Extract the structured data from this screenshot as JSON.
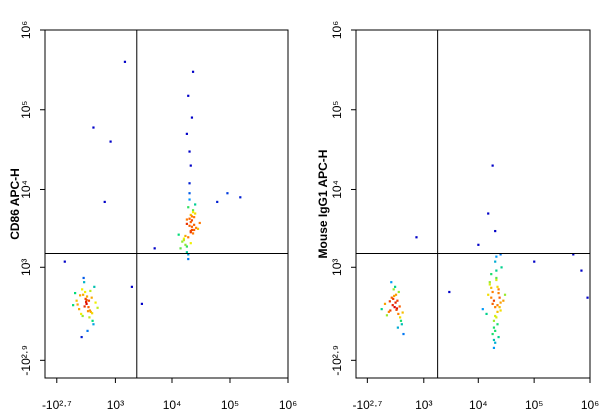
{
  "chart_data": [
    {
      "type": "scatter",
      "scale": "biexponential",
      "y_label": "CD86 APC-H",
      "xlim": [
        -900,
        1000000
      ],
      "ylim": [
        -1400,
        1000000
      ],
      "xticks": [
        {
          "value": -501,
          "label": "-10²·⁷"
        },
        {
          "value": 1000,
          "label": "10³"
        },
        {
          "value": 10000,
          "label": "10⁴"
        },
        {
          "value": 100000,
          "label": "10⁵"
        },
        {
          "value": 1000000,
          "label": "10⁶"
        }
      ],
      "yticks": [
        {
          "value": -794,
          "label": "-10²·⁹"
        },
        {
          "value": 1000,
          "label": "10³"
        },
        {
          "value": 10000,
          "label": "10⁴"
        },
        {
          "value": 100000,
          "label": "10⁵"
        },
        {
          "value": 1000000,
          "label": "10⁶"
        }
      ],
      "gates": {
        "x": 2450,
        "y": 1535
      },
      "x": [
        150,
        80,
        220,
        -50,
        300,
        120,
        190,
        40,
        260,
        100,
        170,
        -120,
        350,
        60,
        210,
        130,
        0,
        280,
        90,
        160,
        240,
        -80,
        200,
        110,
        320,
        50,
        180,
        140,
        20,
        400,
        70,
        230,
        150,
        -30,
        270,
        20000,
        18000,
        23000,
        25000,
        15000,
        21000,
        19000,
        22000,
        17000,
        24000,
        26000,
        14000,
        20000,
        21000,
        18000,
        23000,
        19000,
        16000,
        22000,
        28000,
        20000,
        17000,
        24000,
        21000,
        19000,
        13000,
        22000,
        25000,
        18000,
        20000,
        21000,
        23000,
        19000,
        30000,
        16000,
        22000,
        20000,
        18000,
        24000,
        21000,
        20000,
        22000,
        19000,
        21000,
        18000,
        23000,
        2000,
        5000,
        600,
        800,
        60000,
        90000,
        150000,
        1500,
        -300,
        300,
        3000
      ],
      "y": [
        200,
        350,
        100,
        250,
        -100,
        400,
        150,
        50,
        300,
        600,
        -200,
        180,
        220,
        450,
        0,
        280,
        120,
        -50,
        700,
        320,
        80,
        380,
        250,
        160,
        500,
        -300,
        90,
        230,
        340,
        140,
        20,
        420,
        260,
        190,
        60,
        3500,
        4200,
        2800,
        5000,
        2200,
        3900,
        6000,
        3100,
        2600,
        4500,
        3300,
        1800,
        7500,
        2900,
        3700,
        5500,
        1500,
        2400,
        4100,
        3200,
        9000,
        2000,
        3600,
        4800,
        1300,
        2700,
        3400,
        6500,
        1900,
        4300,
        3000,
        5200,
        2500,
        3800,
        2300,
        4600,
        12000,
        1600,
        3100,
        2100,
        30000,
        80000,
        150000,
        20000,
        50000,
        300000,
        500,
        1800,
        7000,
        40000,
        7000,
        9000,
        8000,
        400000,
        1200,
        60000,
        200
      ]
    },
    {
      "type": "scatter",
      "scale": "biexponential",
      "y_label": "Mouse IgG1 APC-H",
      "xlim": [
        -900,
        1000000
      ],
      "ylim": [
        -1400,
        1000000
      ],
      "xticks": [
        {
          "value": -501,
          "label": "-10²·⁷"
        },
        {
          "value": 1000,
          "label": "10³"
        },
        {
          "value": 10000,
          "label": "10⁴"
        },
        {
          "value": 100000,
          "label": "10⁵"
        },
        {
          "value": 1000000,
          "label": "10⁶"
        }
      ],
      "yticks": [
        {
          "value": -794,
          "label": "-10²·⁹"
        },
        {
          "value": 1000,
          "label": "10³"
        },
        {
          "value": 10000,
          "label": "10⁴"
        },
        {
          "value": 100000,
          "label": "10⁵"
        },
        {
          "value": 1000000,
          "label": "10⁶"
        }
      ],
      "gates": {
        "x": 1840,
        "y": 1535
      },
      "x": [
        120,
        60,
        200,
        -80,
        280,
        150,
        30,
        240,
        100,
        180,
        -150,
        320,
        80,
        210,
        0,
        140,
        260,
        50,
        170,
        90,
        -40,
        230,
        130,
        300,
        20,
        190,
        110,
        160,
        20000,
        18000,
        22000,
        24000,
        16000,
        21000,
        19000,
        23000,
        17000,
        25000,
        15000,
        20000,
        22000,
        18000,
        26000,
        19000,
        21000,
        14000,
        23000,
        20000,
        17000,
        24000,
        21000,
        19000,
        28000,
        16000,
        22000,
        20000,
        18000,
        23000,
        12000,
        21000,
        19000,
        25000,
        20000,
        17000,
        22000,
        30000,
        19000,
        21000,
        20000,
        15000,
        18000,
        25000,
        100000,
        500000,
        700000,
        3000,
        700,
        10000,
        900000
      ],
      "y": [
        150,
        300,
        50,
        200,
        -100,
        350,
        100,
        0,
        450,
        250,
        120,
        -250,
        180,
        400,
        80,
        220,
        -50,
        600,
        130,
        280,
        30,
        160,
        500,
        70,
        240,
        -150,
        330,
        110,
        150,
        400,
        -100,
        300,
        600,
        0,
        250,
        -300,
        800,
        100,
        350,
        -200,
        500,
        200,
        1000,
        -50,
        700,
        50,
        450,
        -400,
        300,
        150,
        900,
        -150,
        250,
        550,
        80,
        1200,
        -250,
        380,
        120,
        650,
        -500,
        220,
        20,
        480,
        180,
        350,
        -350,
        1400,
        3000,
        5000,
        20000,
        1500,
        1200,
        1500,
        900,
        400,
        2500,
        2000,
        300
      ]
    }
  ]
}
